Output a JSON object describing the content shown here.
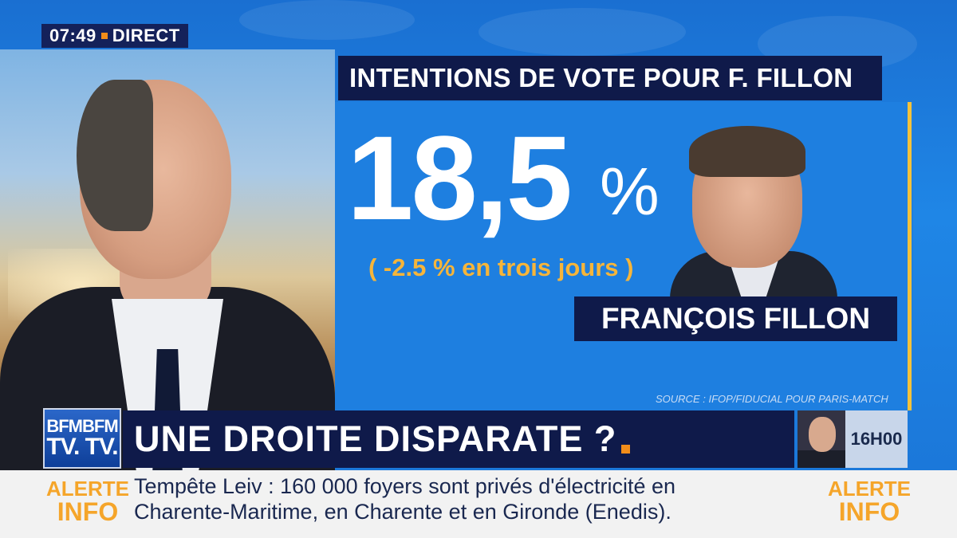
{
  "clock": {
    "time": "07:49",
    "label": "DIRECT"
  },
  "graphic": {
    "headline": "INTENTIONS DE VOTE POUR F. FILLON",
    "value": "18,5",
    "unit": "%",
    "change": "( -2.5 % en trois jours )",
    "name": "FRANÇOIS FILLON",
    "source": "SOURCE : IFOP/FIDUCIAL POUR PARIS-MATCH"
  },
  "channel": {
    "logo_top": "BFMBFM",
    "logo_bottom": "TV. TV."
  },
  "banner": {
    "title": "UNE DROITE DISPARATE ?"
  },
  "next": {
    "time": "16H00"
  },
  "ticker": {
    "alert_word": "ALERTE",
    "info_word": "INFO",
    "line1": "Tempête Leiv : 160 000 foyers sont privés d'électricité en",
    "line2": "Charente-Maritime, en Charente et en Gironde (Enedis)."
  },
  "colors": {
    "accent": "#f28d1a",
    "navy": "#0f1a4a",
    "panel_blue": "#1e7fe0",
    "alert_orange": "#f5a52a"
  }
}
